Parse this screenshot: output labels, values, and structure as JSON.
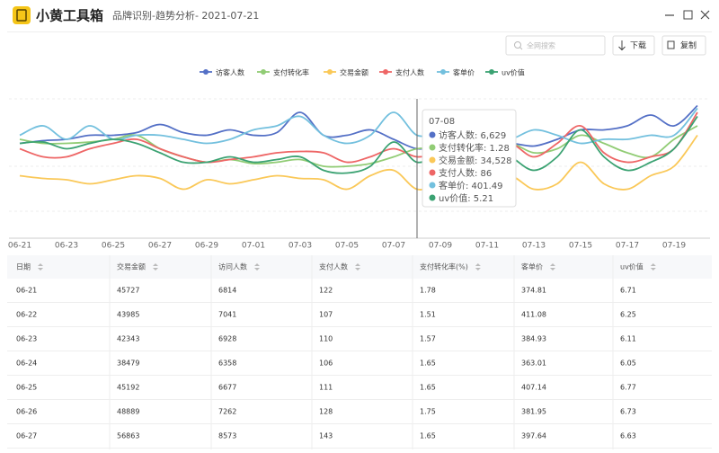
{
  "header": {
    "app_name": "小黄工具箱",
    "subtitle": "品牌识别-趋势分析- 2021-07-21"
  },
  "toolbar": {
    "search_placeholder": "全网搜索",
    "download": "下载",
    "copy": "复制"
  },
  "chart_data": {
    "type": "line",
    "ylim": [
      0,
      100
    ],
    "categories": [
      "06-21",
      null,
      "06-23",
      null,
      "06-25",
      null,
      "06-27",
      null,
      "06-29",
      null,
      "07-01",
      null,
      "07-03",
      null,
      "07-05",
      null,
      "07-07",
      null,
      "07-09",
      null,
      "07-11",
      null,
      "07-13",
      null,
      "07-15",
      null,
      "07-17",
      null,
      "07-19",
      null
    ],
    "series": [
      {
        "name": "访客人数",
        "color": "#5470c6",
        "values": [
          67,
          69,
          70,
          73,
          73,
          75,
          81,
          75,
          73,
          77,
          73,
          75,
          90,
          73,
          73,
          77,
          70,
          63,
          65,
          65,
          65,
          67,
          65,
          70,
          77,
          77,
          80,
          88,
          80,
          95
        ]
      },
      {
        "name": "支付转化率",
        "color": "#91cc75",
        "values": [
          70,
          67,
          67,
          68,
          70,
          73,
          63,
          57,
          53,
          55,
          52,
          53,
          55,
          50,
          50,
          52,
          57,
          63,
          63,
          63,
          63,
          67,
          60,
          63,
          73,
          67,
          60,
          57,
          70,
          80
        ]
      },
      {
        "name": "交易金额",
        "color": "#fac858",
        "values": [
          43,
          41,
          40,
          37,
          40,
          43,
          41,
          33,
          40,
          37,
          40,
          43,
          41,
          40,
          33,
          43,
          47,
          33,
          37,
          40,
          40,
          43,
          33,
          37,
          53,
          37,
          33,
          43,
          50,
          73
        ]
      },
      {
        "name": "支付人数",
        "color": "#ee6666",
        "values": [
          63,
          57,
          57,
          63,
          67,
          70,
          63,
          57,
          53,
          55,
          57,
          60,
          61,
          60,
          53,
          57,
          63,
          57,
          60,
          63,
          63,
          67,
          57,
          67,
          80,
          60,
          53,
          57,
          63,
          90
        ]
      },
      {
        "name": "客单价",
        "color": "#73c0de",
        "values": [
          73,
          80,
          70,
          80,
          70,
          73,
          73,
          70,
          67,
          70,
          77,
          80,
          87,
          73,
          67,
          73,
          90,
          73,
          75,
          73,
          70,
          70,
          77,
          73,
          67,
          70,
          70,
          73,
          73,
          93
        ]
      },
      {
        "name": "uv价值",
        "color": "#3ba272",
        "values": [
          67,
          68,
          63,
          67,
          70,
          67,
          60,
          53,
          53,
          57,
          53,
          55,
          57,
          47,
          45,
          50,
          68,
          53,
          60,
          63,
          63,
          57,
          47,
          57,
          77,
          57,
          47,
          53,
          63,
          87
        ]
      }
    ]
  },
  "tooltip": {
    "title": "07-08",
    "items": [
      "访客人数: 6,629",
      "支付转化率: 1.28",
      "交易金额: 34,528",
      "支付人数: 86",
      "客单价: 401.49",
      "uv价值: 5.21"
    ]
  },
  "table": {
    "columns": [
      "日期",
      "交易金额",
      "访问人数",
      "支付人数",
      "支付转化率(%)",
      "客单价",
      "uv价值"
    ],
    "rows": [
      [
        "06-21",
        "45727",
        "6814",
        "122",
        "1.78",
        "374.81",
        "6.71"
      ],
      [
        "06-22",
        "43985",
        "7041",
        "107",
        "1.51",
        "411.08",
        "6.25"
      ],
      [
        "06-23",
        "42343",
        "6928",
        "110",
        "1.57",
        "384.93",
        "6.11"
      ],
      [
        "06-24",
        "38479",
        "6358",
        "106",
        "1.65",
        "363.01",
        "6.05"
      ],
      [
        "06-25",
        "45192",
        "6677",
        "111",
        "1.65",
        "407.14",
        "6.77"
      ],
      [
        "06-26",
        "48889",
        "7262",
        "128",
        "1.75",
        "381.95",
        "6.73"
      ],
      [
        "06-27",
        "56863",
        "8573",
        "143",
        "1.65",
        "397.64",
        "6.63"
      ]
    ]
  }
}
